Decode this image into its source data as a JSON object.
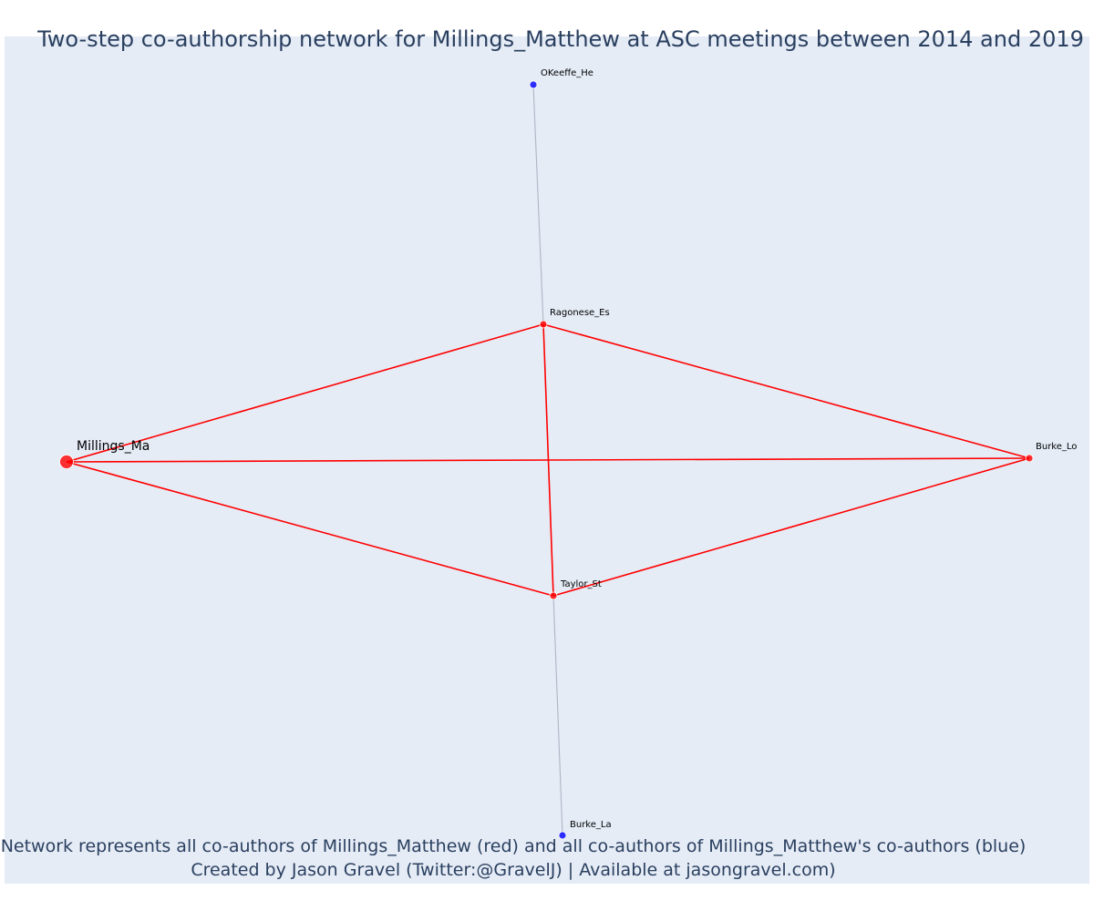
{
  "title": "Two-step co-authorship network for Millings_Matthew at ASC meetings between 2014 and 2019",
  "footer": {
    "line1": "Network represents all co-authors of Millings_Matthew (red) and all co-authors of Millings_Matthew's co-authors (blue)",
    "line2": "Created by Jason Gravel (Twitter:@GravelJ) | Available at jasongravel.com)"
  },
  "colors": {
    "plot_bg": "#e5ecf6",
    "first_step": "#ff0000",
    "second_step": "#0000ff",
    "second_step_edge": "#b0b4c4",
    "text": "#2a3f5f"
  },
  "nodes": [
    {
      "id": "Millings_Ma",
      "label": "Millings_Ma",
      "group": "first_step",
      "role": "ego"
    },
    {
      "id": "Ragonese_Es",
      "label": "Ragonese_Es",
      "group": "first_step",
      "role": "coauthor"
    },
    {
      "id": "Burke_Lo",
      "label": "Burke_Lo",
      "group": "first_step",
      "role": "coauthor"
    },
    {
      "id": "Taylor_St",
      "label": "Taylor_St",
      "group": "first_step",
      "role": "coauthor"
    },
    {
      "id": "OKeeffe_He",
      "label": "OKeeffe_He",
      "group": "second_step",
      "role": "coauthor_of_coauthor"
    },
    {
      "id": "Burke_La",
      "label": "Burke_La",
      "group": "second_step",
      "role": "coauthor_of_coauthor"
    }
  ],
  "edges": [
    {
      "source": "Millings_Ma",
      "target": "Ragonese_Es",
      "group": "first_step"
    },
    {
      "source": "Millings_Ma",
      "target": "Burke_Lo",
      "group": "first_step"
    },
    {
      "source": "Millings_Ma",
      "target": "Taylor_St",
      "group": "first_step"
    },
    {
      "source": "Ragonese_Es",
      "target": "Burke_Lo",
      "group": "first_step"
    },
    {
      "source": "Ragonese_Es",
      "target": "Taylor_St",
      "group": "first_step"
    },
    {
      "source": "Taylor_St",
      "target": "Burke_Lo",
      "group": "first_step"
    },
    {
      "source": "Ragonese_Es",
      "target": "OKeeffe_He",
      "group": "second_step"
    },
    {
      "source": "Taylor_St",
      "target": "Burke_La",
      "group": "second_step"
    }
  ]
}
